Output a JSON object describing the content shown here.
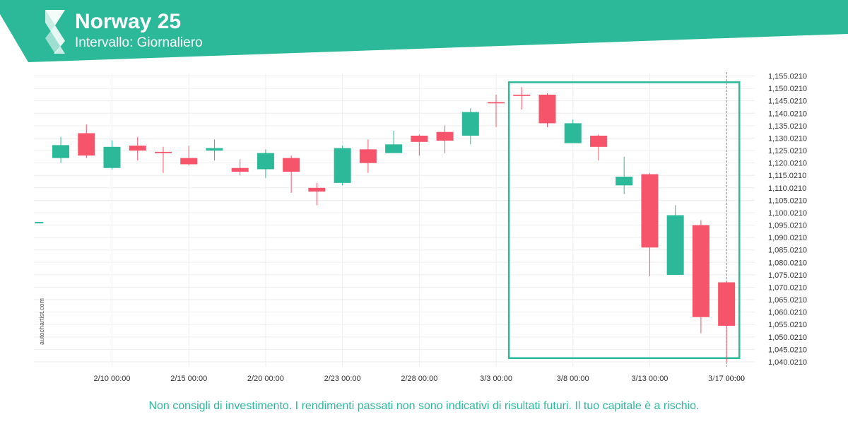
{
  "header": {
    "title": "Norway 25",
    "subtitle": "Intervallo: Giornaliero",
    "brand_color": "#2bb99a",
    "logo_icon": "autochartist-logo-icon"
  },
  "footer": {
    "disclaimer": "Non consigli di investimento. I rendimenti passati non sono indicativi di risultati futuri. Il tuo capitale è a rischio.",
    "watermark": "autochartist.com"
  },
  "colors": {
    "up": "#2bb99a",
    "down": "#f6546a",
    "grid": "#eeeeee",
    "highlight_box": "#2bb99a"
  },
  "chart_data": {
    "type": "candlestick",
    "title": "Norway 25",
    "interval": "Giornaliero",
    "y_axis_position": "right",
    "ylim": [
      1038.021,
      1156.021
    ],
    "yticks": [
      1040.021,
      1045.021,
      1050.021,
      1055.021,
      1060.021,
      1065.021,
      1070.021,
      1075.021,
      1080.021,
      1085.021,
      1090.021,
      1095.021,
      1100.021,
      1105.021,
      1110.021,
      1115.021,
      1120.021,
      1125.021,
      1130.021,
      1135.021,
      1140.021,
      1145.021,
      1150.021,
      1155.021
    ],
    "ytick_labels": [
      "1,040.0210",
      "1,045.0210",
      "1,050.0210",
      "1,055.0210",
      "1,060.0210",
      "1,065.0210",
      "1,070.0210",
      "1,075.0210",
      "1,080.0210",
      "1,085.0210",
      "1,090.0210",
      "1,095.0210",
      "1,100.0210",
      "1,105.0210",
      "1,110.0210",
      "1,115.0210",
      "1,120.0210",
      "1,125.0210",
      "1,130.0210",
      "1,135.0210",
      "1,140.0210",
      "1,145.0210",
      "1,150.0210",
      "1,155.0210"
    ],
    "xticks": [
      {
        "index": 2,
        "label": "2/10 00:00"
      },
      {
        "index": 5,
        "label": "2/15 00:00"
      },
      {
        "index": 8,
        "label": "2/20 00:00"
      },
      {
        "index": 11,
        "label": "2/23 00:00"
      },
      {
        "index": 14,
        "label": "2/28 00:00"
      },
      {
        "index": 17,
        "label": "3/3 00:00"
      },
      {
        "index": 20,
        "label": "3/8 00:00"
      },
      {
        "index": 23,
        "label": "3/13 00:00"
      },
      {
        "index": 26,
        "label": "3/17 00:00",
        "emphasis": true
      }
    ],
    "x_range": [
      -1.05,
      27.1
    ],
    "stray_tick": {
      "index": -0.85,
      "price": 1096.0
    },
    "candles": [
      {
        "o": 1122.0,
        "h": 1130.5,
        "l": 1120.0,
        "c": 1127.2
      },
      {
        "o": 1132.0,
        "h": 1135.5,
        "l": 1122.0,
        "c": 1123.0
      },
      {
        "o": 1118.0,
        "h": 1129.0,
        "l": 1117.5,
        "c": 1126.5
      },
      {
        "o": 1127.0,
        "h": 1130.5,
        "l": 1121.0,
        "c": 1125.0
      },
      {
        "o": 1124.5,
        "h": 1126.5,
        "l": 1116.0,
        "c": 1124.0
      },
      {
        "o": 1122.0,
        "h": 1127.0,
        "l": 1119.0,
        "c": 1119.5
      },
      {
        "o": 1125.0,
        "h": 1129.5,
        "l": 1121.0,
        "c": 1126.0
      },
      {
        "o": 1118.0,
        "h": 1121.5,
        "l": 1115.0,
        "c": 1116.5
      },
      {
        "o": 1117.5,
        "h": 1125.5,
        "l": 1114.0,
        "c": 1124.0
      },
      {
        "o": 1122.0,
        "h": 1123.0,
        "l": 1108.0,
        "c": 1116.5
      },
      {
        "o": 1110.0,
        "h": 1112.0,
        "l": 1103.0,
        "c": 1108.5
      },
      {
        "o": 1112.0,
        "h": 1127.0,
        "l": 1111.0,
        "c": 1126.0
      },
      {
        "o": 1125.5,
        "h": 1129.5,
        "l": 1116.0,
        "c": 1120.0
      },
      {
        "o": 1124.0,
        "h": 1133.0,
        "l": 1124.0,
        "c": 1127.5
      },
      {
        "o": 1131.0,
        "h": 1131.5,
        "l": 1123.0,
        "c": 1128.5
      },
      {
        "o": 1132.5,
        "h": 1135.0,
        "l": 1124.0,
        "c": 1129.0
      },
      {
        "o": 1131.0,
        "h": 1142.0,
        "l": 1127.5,
        "c": 1140.5
      },
      {
        "o": 1144.5,
        "h": 1147.5,
        "l": 1134.5,
        "c": 1144.0
      },
      {
        "o": 1147.5,
        "h": 1150.5,
        "l": 1141.5,
        "c": 1147.0
      },
      {
        "o": 1147.5,
        "h": 1148.0,
        "l": 1134.5,
        "c": 1136.0
      },
      {
        "o": 1128.0,
        "h": 1137.5,
        "l": 1128.0,
        "c": 1136.0
      },
      {
        "o": 1131.0,
        "h": 1131.5,
        "l": 1121.0,
        "c": 1126.5
      },
      {
        "o": 1111.0,
        "h": 1122.5,
        "l": 1107.5,
        "c": 1114.5
      },
      {
        "o": 1115.5,
        "h": 1116.0,
        "l": 1074.5,
        "c": 1086.0
      },
      {
        "o": 1075.0,
        "h": 1103.0,
        "l": 1075.0,
        "c": 1099.0
      },
      {
        "o": 1095.0,
        "h": 1097.0,
        "l": 1051.5,
        "c": 1058.0
      },
      {
        "o": 1072.0,
        "h": 1072.5,
        "l": 1040.0,
        "c": 1054.5
      }
    ],
    "highlight": {
      "from_index": 17.5,
      "to_index": 26.5,
      "price_low": 1041.5,
      "price_high": 1152.5
    },
    "current_marker": {
      "index": 26,
      "style": "dashed-vertical"
    }
  }
}
